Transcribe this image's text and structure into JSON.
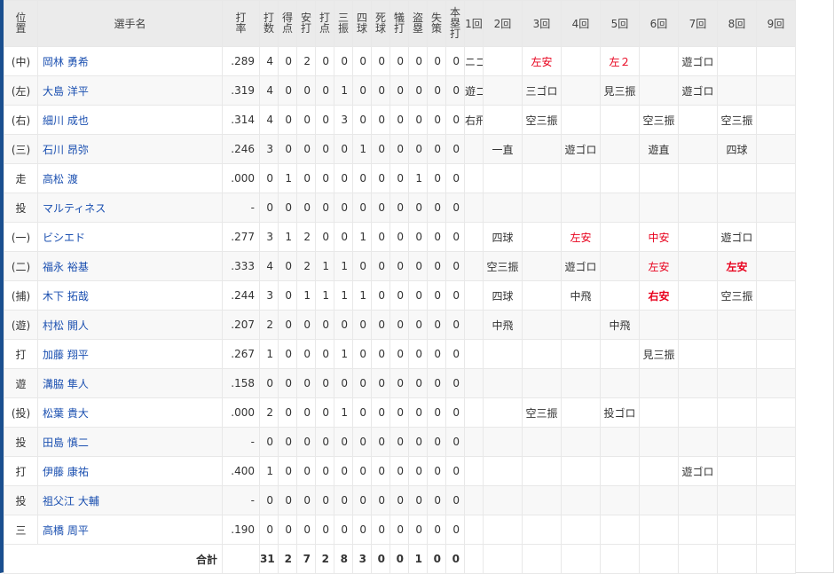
{
  "header": {
    "pos": "位置",
    "name": "選手名",
    "stats": [
      "打率",
      "打数",
      "得点",
      "安打",
      "打点",
      "三振",
      "四球",
      "死球",
      "犠打",
      "盗塁",
      "失策",
      "本塁打"
    ],
    "innings": [
      "1回",
      "2回",
      "3回",
      "4回",
      "5回",
      "6回",
      "7回",
      "8回",
      "9回"
    ]
  },
  "colors": {
    "accent": "#1a4f8f",
    "hit": "#e8001c",
    "link": "#1a4fb0"
  },
  "players": [
    {
      "pos": "(中)",
      "name": "岡林 勇希",
      "avg": ".289",
      "stats": [
        4,
        0,
        2,
        0,
        0,
        0,
        0,
        0,
        0,
        0,
        0
      ],
      "innings": [
        {
          "t": "ニゴロ"
        },
        {
          "t": ""
        },
        {
          "t": "左安",
          "hit": true
        },
        {
          "t": ""
        },
        {
          "t": "左２",
          "hit": true
        },
        {
          "t": ""
        },
        {
          "t": "遊ゴロ"
        },
        {
          "t": ""
        },
        {
          "t": ""
        }
      ]
    },
    {
      "pos": "(左)",
      "name": "大島 洋平",
      "avg": ".319",
      "stats": [
        4,
        0,
        0,
        0,
        1,
        0,
        0,
        0,
        0,
        0,
        0
      ],
      "innings": [
        {
          "t": "遊ゴロ"
        },
        {
          "t": ""
        },
        {
          "t": "三ゴロ"
        },
        {
          "t": ""
        },
        {
          "t": "見三振"
        },
        {
          "t": ""
        },
        {
          "t": "遊ゴロ"
        },
        {
          "t": ""
        },
        {
          "t": ""
        }
      ]
    },
    {
      "pos": "(右)",
      "name": "細川 成也",
      "avg": ".314",
      "stats": [
        4,
        0,
        0,
        0,
        3,
        0,
        0,
        0,
        0,
        0,
        0
      ],
      "innings": [
        {
          "t": "右飛"
        },
        {
          "t": ""
        },
        {
          "t": "空三振"
        },
        {
          "t": ""
        },
        {
          "t": ""
        },
        {
          "t": "空三振"
        },
        {
          "t": ""
        },
        {
          "t": "空三振"
        },
        {
          "t": ""
        }
      ]
    },
    {
      "pos": "(三)",
      "name": "石川 昂弥",
      "avg": ".246",
      "stats": [
        3,
        0,
        0,
        0,
        0,
        1,
        0,
        0,
        0,
        0,
        0
      ],
      "innings": [
        {
          "t": ""
        },
        {
          "t": "一直"
        },
        {
          "t": ""
        },
        {
          "t": "遊ゴロ"
        },
        {
          "t": ""
        },
        {
          "t": "遊直"
        },
        {
          "t": ""
        },
        {
          "t": "四球"
        },
        {
          "t": ""
        }
      ]
    },
    {
      "pos": "走",
      "name": "高松 渡",
      "avg": ".000",
      "stats": [
        0,
        1,
        0,
        0,
        0,
        0,
        0,
        0,
        1,
        0,
        0
      ],
      "innings": [
        {
          "t": ""
        },
        {
          "t": ""
        },
        {
          "t": ""
        },
        {
          "t": ""
        },
        {
          "t": ""
        },
        {
          "t": ""
        },
        {
          "t": ""
        },
        {
          "t": ""
        },
        {
          "t": ""
        }
      ]
    },
    {
      "pos": "投",
      "name": "マルティネス",
      "avg": "-",
      "stats": [
        0,
        0,
        0,
        0,
        0,
        0,
        0,
        0,
        0,
        0,
        0
      ],
      "innings": [
        {
          "t": ""
        },
        {
          "t": ""
        },
        {
          "t": ""
        },
        {
          "t": ""
        },
        {
          "t": ""
        },
        {
          "t": ""
        },
        {
          "t": ""
        },
        {
          "t": ""
        },
        {
          "t": ""
        }
      ]
    },
    {
      "pos": "(一)",
      "name": "ビシエド",
      "avg": ".277",
      "stats": [
        3,
        1,
        2,
        0,
        0,
        1,
        0,
        0,
        0,
        0,
        0
      ],
      "innings": [
        {
          "t": ""
        },
        {
          "t": "四球"
        },
        {
          "t": ""
        },
        {
          "t": "左安",
          "hit": true
        },
        {
          "t": ""
        },
        {
          "t": "中安",
          "hit": true
        },
        {
          "t": ""
        },
        {
          "t": "遊ゴロ"
        },
        {
          "t": ""
        }
      ]
    },
    {
      "pos": "(二)",
      "name": "福永 裕基",
      "avg": ".333",
      "stats": [
        4,
        0,
        2,
        1,
        1,
        0,
        0,
        0,
        0,
        0,
        0
      ],
      "innings": [
        {
          "t": ""
        },
        {
          "t": "空三振"
        },
        {
          "t": ""
        },
        {
          "t": "遊ゴロ"
        },
        {
          "t": ""
        },
        {
          "t": "左安",
          "hit": true
        },
        {
          "t": ""
        },
        {
          "t": "左安",
          "hit": true,
          "rbi": true
        },
        {
          "t": ""
        }
      ]
    },
    {
      "pos": "(捕)",
      "name": "木下 拓哉",
      "avg": ".244",
      "stats": [
        3,
        0,
        1,
        1,
        1,
        1,
        0,
        0,
        0,
        0,
        0
      ],
      "innings": [
        {
          "t": ""
        },
        {
          "t": "四球"
        },
        {
          "t": ""
        },
        {
          "t": "中飛"
        },
        {
          "t": ""
        },
        {
          "t": "右安",
          "hit": true,
          "rbi": true
        },
        {
          "t": ""
        },
        {
          "t": "空三振"
        },
        {
          "t": ""
        }
      ]
    },
    {
      "pos": "(遊)",
      "name": "村松 開人",
      "avg": ".207",
      "stats": [
        2,
        0,
        0,
        0,
        0,
        0,
        0,
        0,
        0,
        0,
        0
      ],
      "innings": [
        {
          "t": ""
        },
        {
          "t": "中飛"
        },
        {
          "t": ""
        },
        {
          "t": ""
        },
        {
          "t": "中飛"
        },
        {
          "t": ""
        },
        {
          "t": ""
        },
        {
          "t": ""
        },
        {
          "t": ""
        }
      ]
    },
    {
      "pos": "打",
      "name": "加藤 翔平",
      "avg": ".267",
      "stats": [
        1,
        0,
        0,
        0,
        1,
        0,
        0,
        0,
        0,
        0,
        0
      ],
      "innings": [
        {
          "t": ""
        },
        {
          "t": ""
        },
        {
          "t": ""
        },
        {
          "t": ""
        },
        {
          "t": ""
        },
        {
          "t": "見三振"
        },
        {
          "t": ""
        },
        {
          "t": ""
        },
        {
          "t": ""
        }
      ]
    },
    {
      "pos": "遊",
      "name": "溝脇 隼人",
      "avg": ".158",
      "stats": [
        0,
        0,
        0,
        0,
        0,
        0,
        0,
        0,
        0,
        0,
        0
      ],
      "innings": [
        {
          "t": ""
        },
        {
          "t": ""
        },
        {
          "t": ""
        },
        {
          "t": ""
        },
        {
          "t": ""
        },
        {
          "t": ""
        },
        {
          "t": ""
        },
        {
          "t": ""
        },
        {
          "t": ""
        }
      ]
    },
    {
      "pos": "(投)",
      "name": "松葉 貴大",
      "avg": ".000",
      "stats": [
        2,
        0,
        0,
        0,
        1,
        0,
        0,
        0,
        0,
        0,
        0
      ],
      "innings": [
        {
          "t": ""
        },
        {
          "t": ""
        },
        {
          "t": "空三振"
        },
        {
          "t": ""
        },
        {
          "t": "投ゴロ"
        },
        {
          "t": ""
        },
        {
          "t": ""
        },
        {
          "t": ""
        },
        {
          "t": ""
        }
      ]
    },
    {
      "pos": "投",
      "name": "田島 慎二",
      "avg": "-",
      "stats": [
        0,
        0,
        0,
        0,
        0,
        0,
        0,
        0,
        0,
        0,
        0
      ],
      "innings": [
        {
          "t": ""
        },
        {
          "t": ""
        },
        {
          "t": ""
        },
        {
          "t": ""
        },
        {
          "t": ""
        },
        {
          "t": ""
        },
        {
          "t": ""
        },
        {
          "t": ""
        },
        {
          "t": ""
        }
      ]
    },
    {
      "pos": "打",
      "name": "伊藤 康祐",
      "avg": ".400",
      "stats": [
        1,
        0,
        0,
        0,
        0,
        0,
        0,
        0,
        0,
        0,
        0
      ],
      "innings": [
        {
          "t": ""
        },
        {
          "t": ""
        },
        {
          "t": ""
        },
        {
          "t": ""
        },
        {
          "t": ""
        },
        {
          "t": ""
        },
        {
          "t": "遊ゴロ"
        },
        {
          "t": ""
        },
        {
          "t": ""
        }
      ]
    },
    {
      "pos": "投",
      "name": "祖父江 大輔",
      "avg": "-",
      "stats": [
        0,
        0,
        0,
        0,
        0,
        0,
        0,
        0,
        0,
        0,
        0
      ],
      "innings": [
        {
          "t": ""
        },
        {
          "t": ""
        },
        {
          "t": ""
        },
        {
          "t": ""
        },
        {
          "t": ""
        },
        {
          "t": ""
        },
        {
          "t": ""
        },
        {
          "t": ""
        },
        {
          "t": ""
        }
      ]
    },
    {
      "pos": "三",
      "name": "高橋 周平",
      "avg": ".190",
      "stats": [
        0,
        0,
        0,
        0,
        0,
        0,
        0,
        0,
        0,
        0,
        0
      ],
      "innings": [
        {
          "t": ""
        },
        {
          "t": ""
        },
        {
          "t": ""
        },
        {
          "t": ""
        },
        {
          "t": ""
        },
        {
          "t": ""
        },
        {
          "t": ""
        },
        {
          "t": ""
        },
        {
          "t": ""
        }
      ]
    }
  ],
  "total": {
    "label": "合計",
    "stats": [
      31,
      2,
      7,
      2,
      8,
      3,
      0,
      0,
      1,
      0,
      0
    ]
  }
}
